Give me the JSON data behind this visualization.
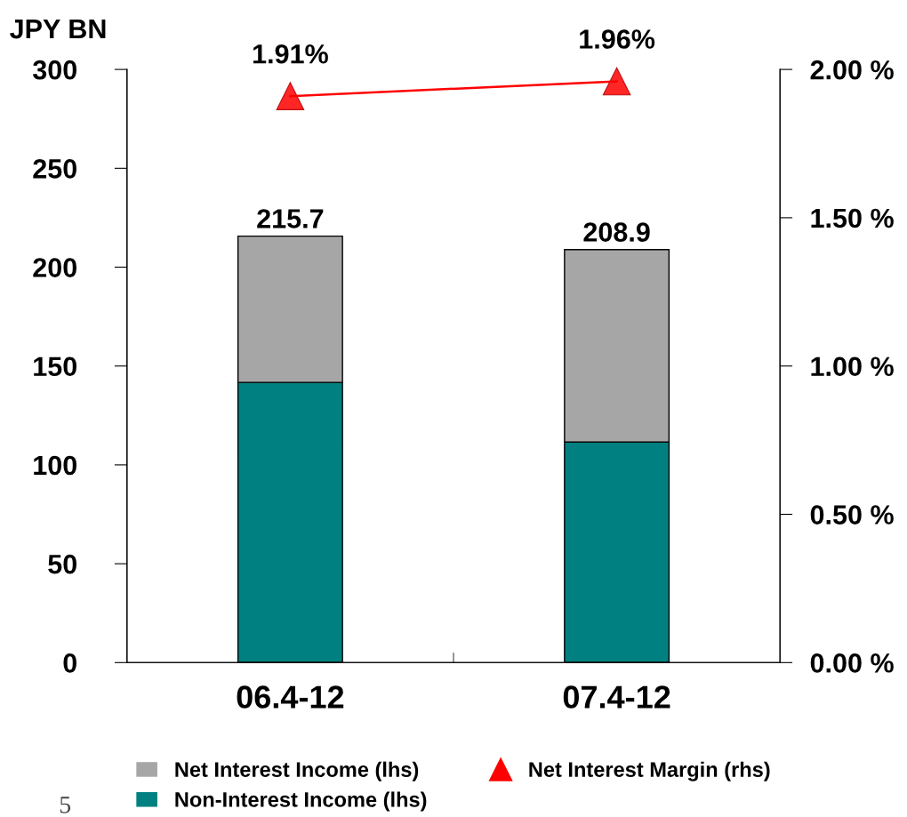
{
  "chart_data": {
    "type": "bar",
    "stacked": true,
    "ylabel": "JPY BN",
    "categories": [
      "06.4-12",
      "07.4-12"
    ],
    "series": [
      {
        "name": "Non-Interest Income (lhs)",
        "color": "#008080",
        "values": [
          141.7,
          111.6
        ]
      },
      {
        "name": "Net Interest Income (lhs)",
        "color": "#a6a6a6",
        "values": [
          74.0,
          97.3
        ]
      },
      {
        "name": "Net Interest Margin (rhs)",
        "type": "line",
        "axis": "y2",
        "color": "#ff0000",
        "marker": "triangle",
        "values": [
          1.91,
          1.96
        ],
        "value_labels": [
          "1.91%",
          "1.96%"
        ]
      }
    ],
    "totals": [
      "215.7",
      "208.9"
    ],
    "ylim": [
      0,
      300
    ],
    "yticks": [
      0,
      50,
      100,
      150,
      200,
      250,
      300
    ],
    "y2lim": [
      0,
      2.0
    ],
    "y2ticks": [
      {
        "value": 0,
        "label": "0.00 %"
      },
      {
        "value": 0.5,
        "label": "0.50 %"
      },
      {
        "value": 1.0,
        "label": "1.00 %"
      },
      {
        "value": 1.5,
        "label": "1.50 %"
      },
      {
        "value": 2.0,
        "label": "2.00 %"
      }
    ],
    "grid": false,
    "legend": "bottom",
    "annotations": [
      "5"
    ]
  }
}
